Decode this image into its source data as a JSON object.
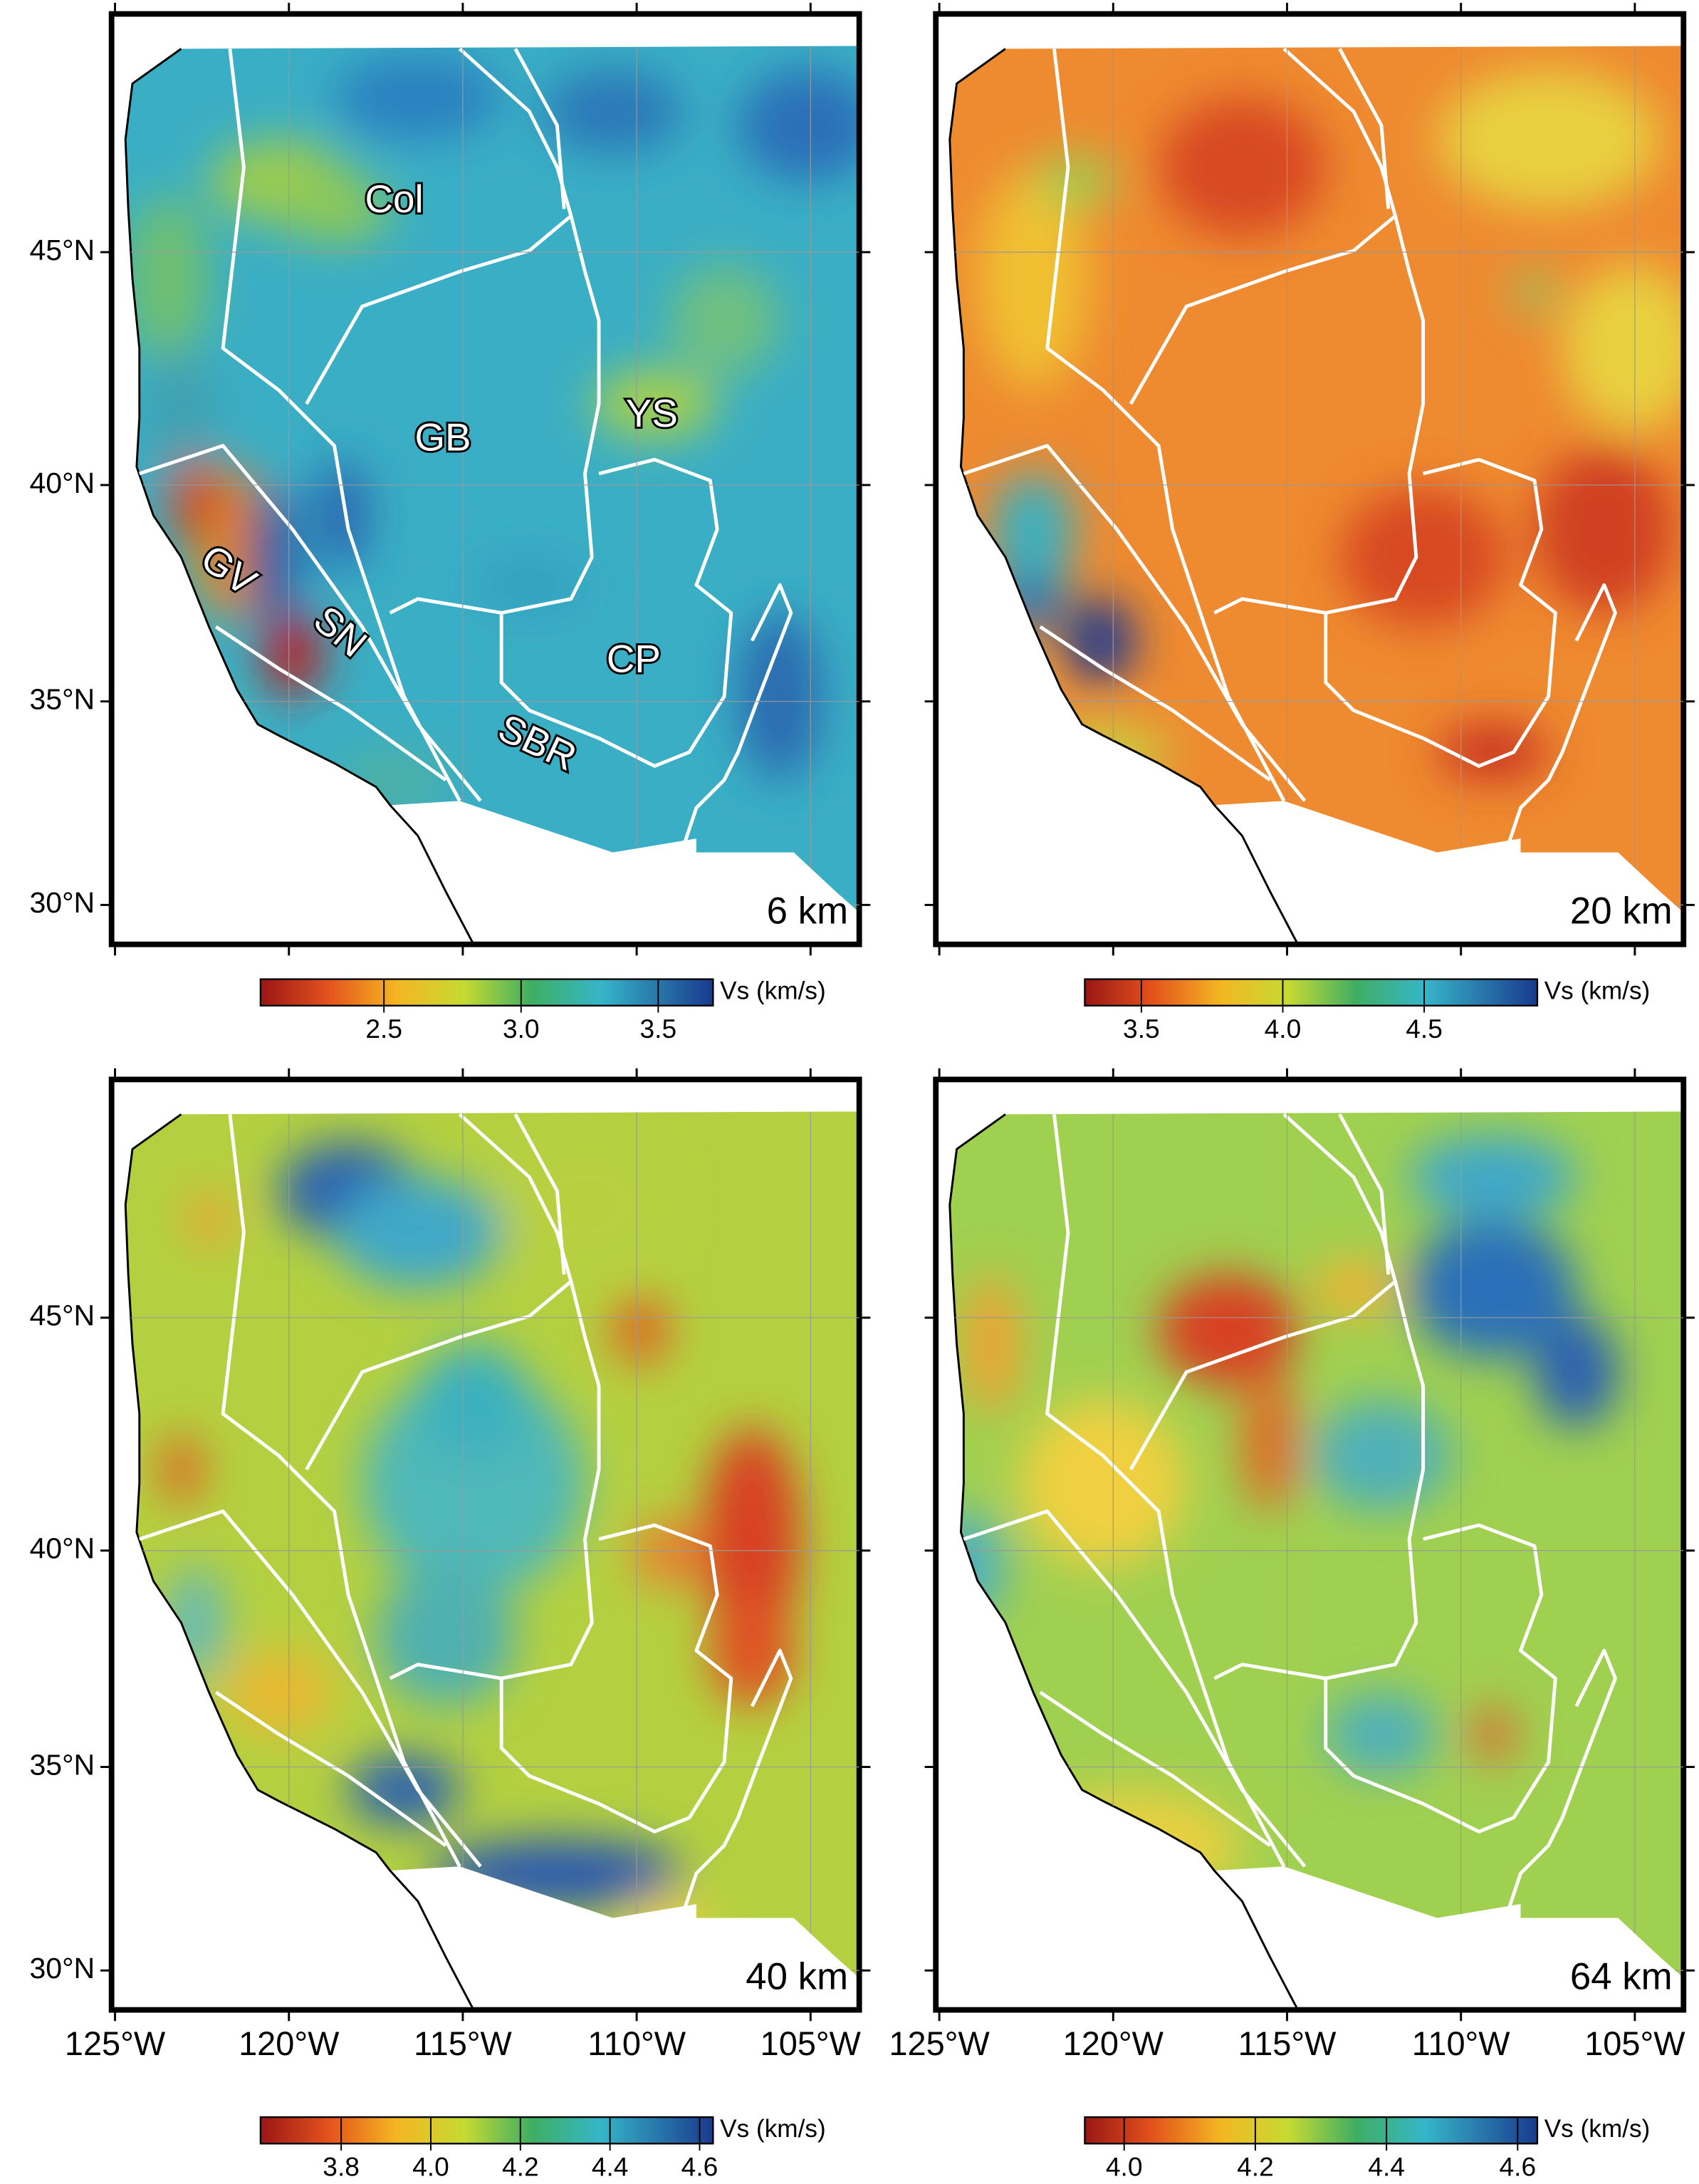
{
  "xlim": [
    -125.1,
    -103.6
  ],
  "ylim": [
    29,
    49.7
  ],
  "lat_ticks": [
    {
      "value": 30,
      "label": "30°N"
    },
    {
      "value": 35,
      "label": "35°N"
    },
    {
      "value": 40,
      "label": "40°N"
    },
    {
      "value": 45,
      "label": "45°N"
    }
  ],
  "lon_ticks": [
    {
      "value": -125,
      "label": "125°W"
    },
    {
      "value": -120,
      "label": "120°W"
    },
    {
      "value": -115,
      "label": "115°W"
    },
    {
      "value": -110,
      "label": "110°W"
    },
    {
      "value": -105,
      "label": "105°W"
    }
  ],
  "region_labels": [
    "Col",
    "GB",
    "YS",
    "GV",
    "SN",
    "CP",
    "SBR"
  ],
  "panels": [
    {
      "depth": "6 km",
      "colorbar": {
        "label": "Vs (km/s)",
        "lim": [
          2.05,
          3.7
        ],
        "ticks": [
          2.5,
          {
            "value": 3,
            "label": "3.0"
          },
          3.5
        ]
      }
    },
    {
      "depth": "20 km",
      "colorbar": {
        "label": "Vs (km/s)",
        "lim": [
          3.3,
          4.9
        ],
        "ticks": [
          3.5,
          {
            "value": 4,
            "label": "4.0"
          },
          4.5
        ]
      }
    },
    {
      "depth": "40 km",
      "colorbar": {
        "label": "Vs (km/s)",
        "lim": [
          3.62,
          4.63
        ],
        "ticks": [
          3.8,
          {
            "value": 4,
            "label": "4.0"
          },
          4.2,
          4.4,
          4.6
        ]
      }
    },
    {
      "depth": "64 km",
      "colorbar": {
        "label": "Vs (km/s)",
        "lim": [
          3.94,
          4.63
        ],
        "ticks": [
          {
            "value": 4,
            "label": "4.0"
          },
          4.2,
          4.4,
          4.6
        ]
      }
    }
  ]
}
